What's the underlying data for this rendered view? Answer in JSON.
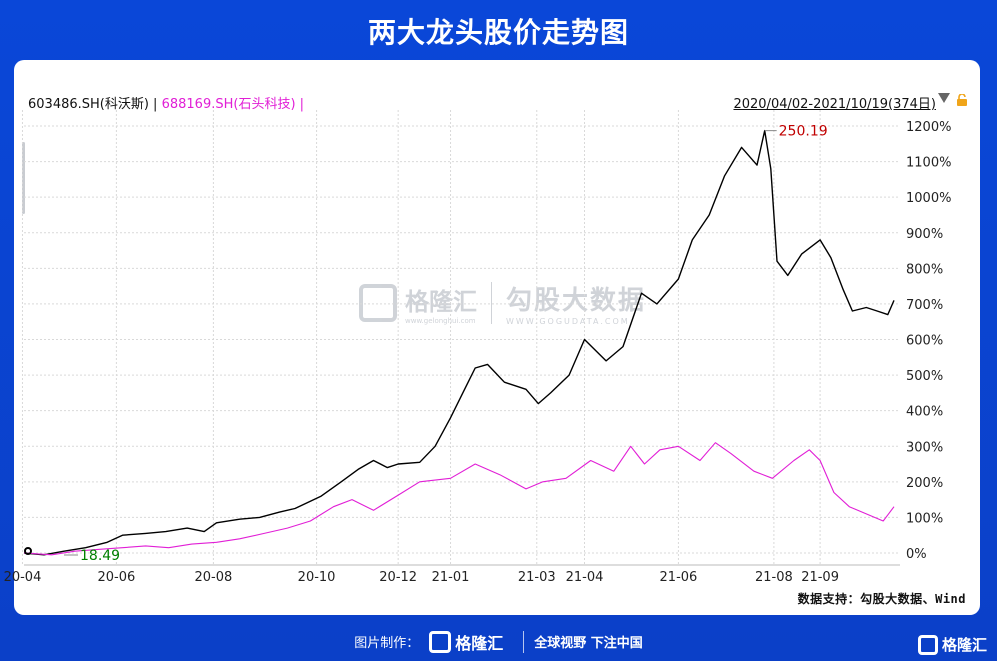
{
  "header": {
    "title": "两大龙头股价走势图"
  },
  "legend": {
    "series1": "603486.SH(科沃斯) |",
    "series2": "688169.SH(石头科技) |"
  },
  "range": {
    "label": "2020/04/02-2021/10/19(374日)"
  },
  "annotations": {
    "max_label": "250.19",
    "min_label": "18.49"
  },
  "source": {
    "text": "数据支持：勾股大数据、Wind"
  },
  "watermark": {
    "left": "格隆汇",
    "left_sub": "www.gelonghui.com",
    "right": "勾股大数据",
    "right_sub": "WWW.GOGUDATA.COM"
  },
  "footer": {
    "made_by": "图片制作：",
    "brand": "格隆汇",
    "slogan": "全球视野 下注中国"
  },
  "corner_brand": "格隆汇",
  "colors": {
    "series1": "#000000",
    "series2": "#e11fd6",
    "max_label": "#c00000",
    "min_label": "#008000",
    "background": "#0a47d8"
  },
  "chart_data": {
    "type": "line",
    "ylim": [
      0,
      1200
    ],
    "y_ticks": [
      "0%",
      "100%",
      "200%",
      "300%",
      "400%",
      "500%",
      "600%",
      "700%",
      "800%",
      "900%",
      "1000%",
      "1100%",
      "1200%"
    ],
    "y_tick_values": [
      0,
      100,
      200,
      300,
      400,
      500,
      600,
      700,
      800,
      900,
      1000,
      1100,
      1200
    ],
    "x_ticks": [
      "20-04",
      "20-06",
      "20-08",
      "20-10",
      "20-12",
      "21-01",
      "21-03",
      "21-04",
      "21-06",
      "21-08",
      "21-09"
    ],
    "x_tick_dates": [
      "2020-04-01",
      "2020-06-01",
      "2020-08-03",
      "2020-10-09",
      "2020-12-01",
      "2021-01-04",
      "2021-03-01",
      "2021-04-01",
      "2021-06-01",
      "2021-08-02",
      "2021-09-01"
    ],
    "x_range": [
      "2020-04-02",
      "2021-10-19"
    ],
    "series": [
      {
        "name": "603486.SH(科沃斯)",
        "points": [
          [
            "2020-04-02",
            0
          ],
          [
            "2020-04-15",
            -5
          ],
          [
            "2020-04-28",
            5
          ],
          [
            "2020-05-12",
            15
          ],
          [
            "2020-05-26",
            30
          ],
          [
            "2020-06-05",
            50
          ],
          [
            "2020-06-20",
            55
          ],
          [
            "2020-07-03",
            60
          ],
          [
            "2020-07-17",
            70
          ],
          [
            "2020-07-28",
            60
          ],
          [
            "2020-08-05",
            85
          ],
          [
            "2020-08-20",
            95
          ],
          [
            "2020-09-02",
            100
          ],
          [
            "2020-09-15",
            115
          ],
          [
            "2020-09-25",
            125
          ],
          [
            "2020-10-12",
            160
          ],
          [
            "2020-10-25",
            200
          ],
          [
            "2020-11-05",
            235
          ],
          [
            "2020-11-15",
            260
          ],
          [
            "2020-11-24",
            240
          ],
          [
            "2020-12-01",
            250
          ],
          [
            "2020-12-15",
            255
          ],
          [
            "2020-12-25",
            300
          ],
          [
            "2021-01-04",
            380
          ],
          [
            "2021-01-12",
            450
          ],
          [
            "2021-01-20",
            520
          ],
          [
            "2021-01-28",
            530
          ],
          [
            "2021-02-08",
            480
          ],
          [
            "2021-02-22",
            460
          ],
          [
            "2021-03-02",
            420
          ],
          [
            "2021-03-10",
            450
          ],
          [
            "2021-03-22",
            500
          ],
          [
            "2021-04-01",
            600
          ],
          [
            "2021-04-15",
            540
          ],
          [
            "2021-04-26",
            580
          ],
          [
            "2021-05-08",
            730
          ],
          [
            "2021-05-18",
            700
          ],
          [
            "2021-06-01",
            770
          ],
          [
            "2021-06-10",
            880
          ],
          [
            "2021-06-21",
            950
          ],
          [
            "2021-07-01",
            1060
          ],
          [
            "2021-07-12",
            1140
          ],
          [
            "2021-07-22",
            1090
          ],
          [
            "2021-07-27",
            1187
          ],
          [
            "2021-07-31",
            1080
          ],
          [
            "2021-08-04",
            820
          ],
          [
            "2021-08-11",
            780
          ],
          [
            "2021-08-20",
            840
          ],
          [
            "2021-09-01",
            880
          ],
          [
            "2021-09-08",
            830
          ],
          [
            "2021-09-16",
            740
          ],
          [
            "2021-09-22",
            680
          ],
          [
            "2021-10-01",
            690
          ],
          [
            "2021-10-08",
            680
          ],
          [
            "2021-10-15",
            670
          ],
          [
            "2021-10-19",
            710
          ]
        ]
      },
      {
        "name": "688169.SH(石头科技)",
        "points": [
          [
            "2020-04-02",
            0
          ],
          [
            "2020-04-20",
            -5
          ],
          [
            "2020-05-05",
            5
          ],
          [
            "2020-05-20",
            10
          ],
          [
            "2020-06-05",
            15
          ],
          [
            "2020-06-20",
            20
          ],
          [
            "2020-07-05",
            15
          ],
          [
            "2020-07-20",
            25
          ],
          [
            "2020-08-05",
            30
          ],
          [
            "2020-08-20",
            40
          ],
          [
            "2020-09-05",
            55
          ],
          [
            "2020-09-20",
            70
          ],
          [
            "2020-10-05",
            90
          ],
          [
            "2020-10-20",
            130
          ],
          [
            "2020-11-01",
            150
          ],
          [
            "2020-11-15",
            120
          ],
          [
            "2020-11-30",
            160
          ],
          [
            "2020-12-15",
            200
          ],
          [
            "2021-01-04",
            210
          ],
          [
            "2021-01-20",
            250
          ],
          [
            "2021-02-05",
            220
          ],
          [
            "2021-02-22",
            180
          ],
          [
            "2021-03-05",
            200
          ],
          [
            "2021-03-20",
            210
          ],
          [
            "2021-04-05",
            260
          ],
          [
            "2021-04-20",
            230
          ],
          [
            "2021-05-01",
            300
          ],
          [
            "2021-05-10",
            250
          ],
          [
            "2021-05-20",
            290
          ],
          [
            "2021-06-01",
            300
          ],
          [
            "2021-06-15",
            260
          ],
          [
            "2021-06-25",
            310
          ],
          [
            "2021-07-05",
            280
          ],
          [
            "2021-07-20",
            230
          ],
          [
            "2021-08-01",
            210
          ],
          [
            "2021-08-15",
            260
          ],
          [
            "2021-08-25",
            290
          ],
          [
            "2021-09-01",
            260
          ],
          [
            "2021-09-10",
            170
          ],
          [
            "2021-09-20",
            130
          ],
          [
            "2021-10-01",
            110
          ],
          [
            "2021-10-12",
            90
          ],
          [
            "2021-10-19",
            130
          ]
        ]
      }
    ]
  }
}
